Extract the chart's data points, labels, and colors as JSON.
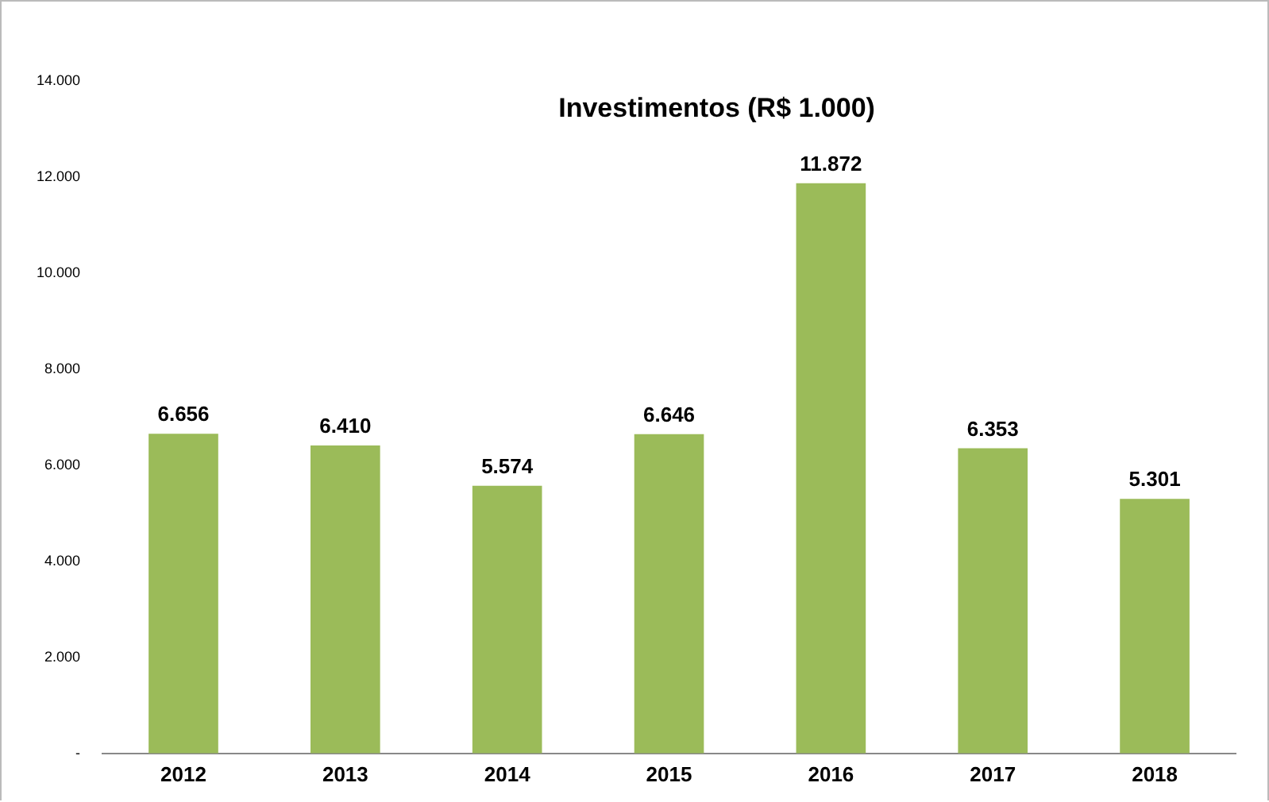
{
  "chart_data": {
    "type": "bar",
    "title": "Investimentos (R$ 1.000)",
    "categories": [
      "2012",
      "2013",
      "2014",
      "2015",
      "2016",
      "2017",
      "2018"
    ],
    "values": [
      6656,
      6410,
      5574,
      6646,
      11872,
      6353,
      5301
    ],
    "value_labels": [
      "6.656",
      "6.410",
      "5.574",
      "6.646",
      "11.872",
      "6.353",
      "5.301"
    ],
    "color": "#9bbb59",
    "ylim": [
      0,
      14000
    ],
    "yticks": [
      {
        "value": 0,
        "label": "-"
      },
      {
        "value": 2000,
        "label": "2.000"
      },
      {
        "value": 4000,
        "label": "4.000"
      },
      {
        "value": 6000,
        "label": "6.000"
      },
      {
        "value": 8000,
        "label": "8.000"
      },
      {
        "value": 10000,
        "label": "10.000"
      },
      {
        "value": 12000,
        "label": "12.000"
      },
      {
        "value": 14000,
        "label": "14.000"
      }
    ],
    "grid": false,
    "legend": false
  }
}
